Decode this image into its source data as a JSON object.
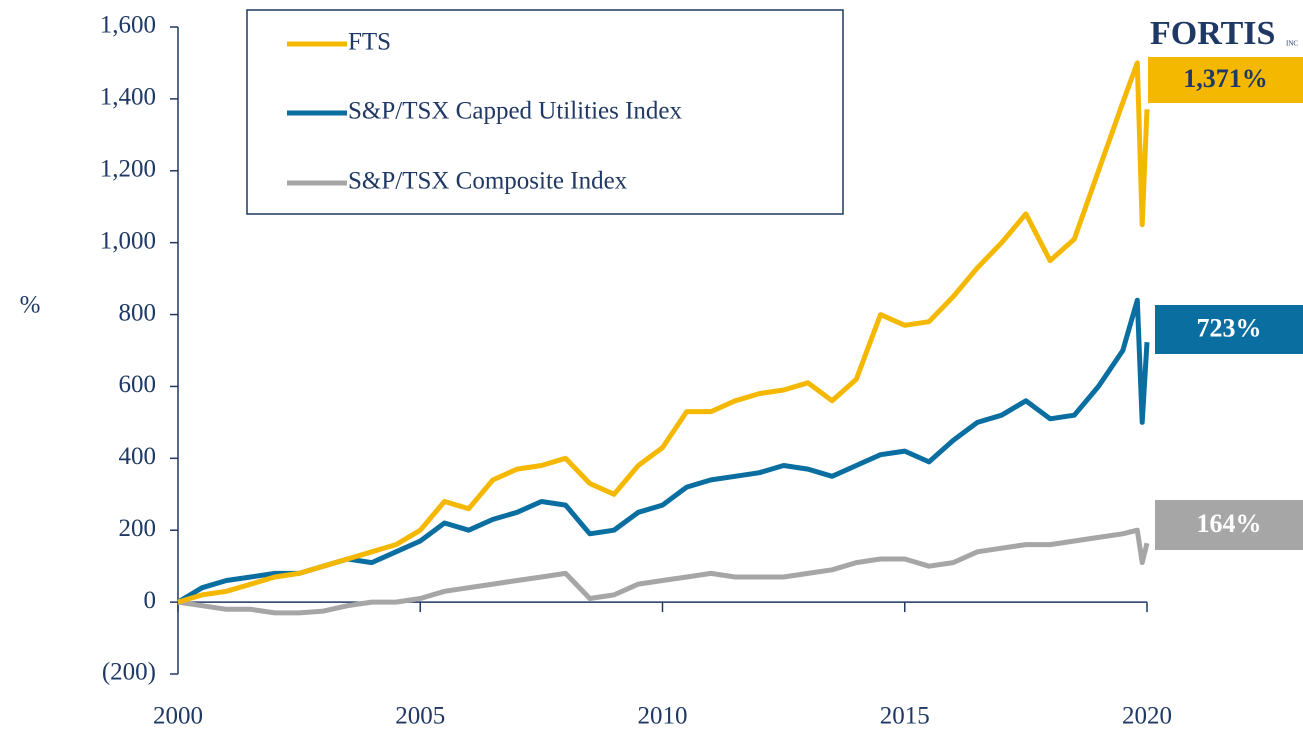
{
  "chart_data": {
    "type": "line",
    "y_label": "%",
    "logo": "FORTIS",
    "logo_suffix": "INC",
    "x": [
      2000,
      2000.5,
      2001,
      2001.5,
      2002,
      2002.5,
      2003,
      2003.5,
      2004,
      2004.5,
      2005,
      2005.5,
      2006,
      2006.5,
      2007,
      2007.5,
      2008,
      2008.5,
      2009,
      2009.5,
      2010,
      2010.5,
      2011,
      2011.5,
      2012,
      2012.5,
      2013,
      2013.5,
      2014,
      2014.5,
      2015,
      2015.5,
      2016,
      2016.5,
      2017,
      2017.5,
      2018,
      2018.5,
      2019,
      2019.5,
      2019.8,
      2019.9,
      2020
    ],
    "series": [
      {
        "name": "FTS",
        "color": "#f5b800",
        "end_label": "1,371%",
        "values": [
          0,
          20,
          30,
          50,
          70,
          80,
          100,
          120,
          140,
          160,
          200,
          280,
          260,
          340,
          370,
          380,
          400,
          330,
          300,
          380,
          430,
          530,
          530,
          560,
          580,
          590,
          610,
          560,
          620,
          800,
          770,
          780,
          850,
          930,
          1000,
          1080,
          950,
          1010,
          1200,
          1390,
          1500,
          1050,
          1371
        ]
      },
      {
        "name": "S&P/TSX Capped Utilities Index",
        "color": "#0a6fa0",
        "end_label": "723%",
        "values": [
          0,
          40,
          60,
          70,
          80,
          80,
          100,
          120,
          110,
          140,
          170,
          220,
          200,
          230,
          250,
          280,
          270,
          190,
          200,
          250,
          270,
          320,
          340,
          350,
          360,
          380,
          370,
          350,
          380,
          410,
          420,
          390,
          450,
          500,
          520,
          560,
          510,
          520,
          600,
          700,
          840,
          500,
          723
        ]
      },
      {
        "name": "S&P/TSX Composite Index",
        "color": "#a6a6a6",
        "end_label": "164%",
        "values": [
          0,
          -10,
          -20,
          -20,
          -30,
          -30,
          -25,
          -10,
          0,
          0,
          10,
          30,
          40,
          50,
          60,
          70,
          80,
          10,
          20,
          50,
          60,
          70,
          80,
          70,
          70,
          70,
          80,
          90,
          110,
          120,
          120,
          100,
          110,
          140,
          150,
          160,
          160,
          170,
          180,
          190,
          200,
          110,
          164
        ]
      }
    ],
    "xlim": [
      2000,
      2020
    ],
    "xticks": [
      2000,
      2005,
      2010,
      2015,
      2020
    ],
    "ylim": [
      -200,
      1600
    ],
    "yticks": [
      {
        "value": -200,
        "label": "(200)"
      },
      0,
      200,
      400,
      600,
      800,
      {
        "value": 1000,
        "label": "1,000"
      },
      {
        "value": 1200,
        "label": "1,200"
      },
      {
        "value": 1400,
        "label": "1,400"
      },
      {
        "value": 1600,
        "label": "1,600"
      }
    ],
    "grid": false
  }
}
